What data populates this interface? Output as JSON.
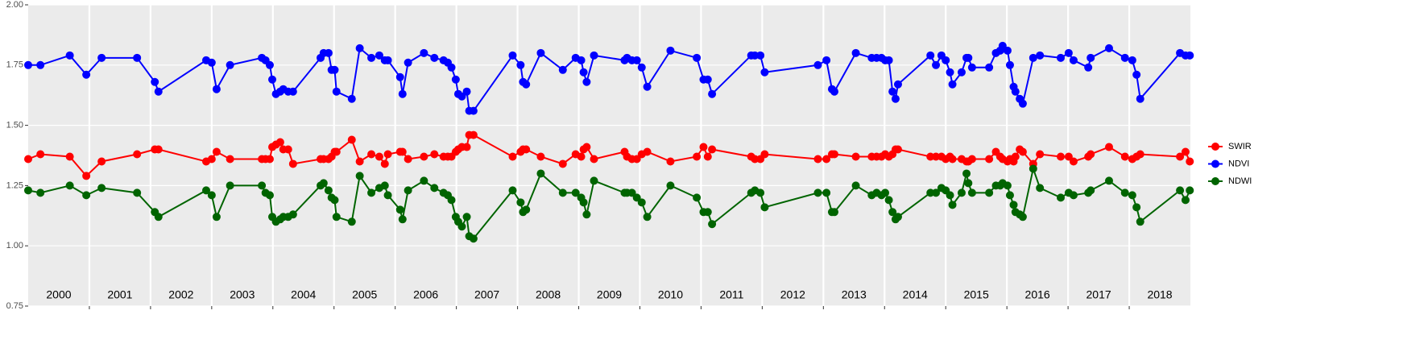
{
  "chart_data": {
    "type": "line",
    "x": [
      2000.0,
      2000.2,
      2000.68,
      2000.95,
      2001.2,
      2001.78,
      2002.07,
      2002.13,
      2002.91,
      2003.0,
      2003.08,
      2003.3,
      2003.82,
      2003.88,
      2003.95,
      2003.99,
      2004.05,
      2004.12,
      2004.17,
      2004.25,
      2004.33,
      2004.78,
      2004.83,
      2004.91,
      2004.96,
      2005.01,
      2005.04,
      2005.29,
      2005.42,
      2005.61,
      2005.74,
      2005.83,
      2005.88,
      2006.08,
      2006.12,
      2006.21,
      2006.47,
      2006.64,
      2006.79,
      2006.86,
      2006.92,
      2006.99,
      2007.03,
      2007.09,
      2007.17,
      2007.21,
      2007.28,
      2007.92,
      2008.05,
      2008.09,
      2008.14,
      2008.38,
      2008.74,
      2008.95,
      2009.04,
      2009.08,
      2009.13,
      2009.25,
      2009.75,
      2009.79,
      2009.87,
      2009.95,
      2010.03,
      2010.12,
      2010.5,
      2010.93,
      2011.04,
      2011.11,
      2011.18,
      2011.82,
      2011.88,
      2011.97,
      2012.04,
      2012.91,
      2013.05,
      2013.14,
      2013.18,
      2013.53,
      2013.79,
      2013.87,
      2013.95,
      2014.01,
      2014.07,
      2014.13,
      2014.18,
      2014.22,
      2014.75,
      2014.84,
      2014.93,
      2015.0,
      2015.07,
      2015.11,
      2015.26,
      2015.34,
      2015.37,
      2015.43,
      2015.71,
      2015.82,
      2015.89,
      2015.93,
      2016.01,
      2016.05,
      2016.11,
      2016.14,
      2016.21,
      2016.26,
      2016.43,
      2016.54,
      2016.88,
      2017.01,
      2017.09,
      2017.33,
      2017.37,
      2017.67,
      2017.93,
      2018.05,
      2018.12,
      2018.18,
      2018.83,
      2018.92,
      2018.99
    ],
    "series": [
      {
        "name": "SWIR",
        "color": "#ff0000",
        "values": [
          1.36,
          1.38,
          1.37,
          1.29,
          1.35,
          1.38,
          1.4,
          1.4,
          1.35,
          1.36,
          1.39,
          1.36,
          1.36,
          1.36,
          1.36,
          1.41,
          1.42,
          1.43,
          1.4,
          1.4,
          1.34,
          1.36,
          1.36,
          1.36,
          1.37,
          1.39,
          1.39,
          1.44,
          1.35,
          1.38,
          1.37,
          1.34,
          1.38,
          1.39,
          1.39,
          1.36,
          1.37,
          1.38,
          1.37,
          1.37,
          1.37,
          1.39,
          1.4,
          1.41,
          1.41,
          1.46,
          1.46,
          1.37,
          1.39,
          1.4,
          1.4,
          1.37,
          1.34,
          1.38,
          1.37,
          1.4,
          1.41,
          1.36,
          1.39,
          1.37,
          1.36,
          1.36,
          1.38,
          1.39,
          1.35,
          1.37,
          1.41,
          1.37,
          1.4,
          1.37,
          1.36,
          1.36,
          1.38,
          1.36,
          1.36,
          1.38,
          1.38,
          1.37,
          1.37,
          1.37,
          1.37,
          1.38,
          1.37,
          1.38,
          1.4,
          1.4,
          1.37,
          1.37,
          1.37,
          1.36,
          1.37,
          1.36,
          1.36,
          1.35,
          1.35,
          1.36,
          1.36,
          1.39,
          1.37,
          1.36,
          1.35,
          1.36,
          1.35,
          1.37,
          1.4,
          1.39,
          1.34,
          1.38,
          1.37,
          1.37,
          1.35,
          1.37,
          1.38,
          1.41,
          1.37,
          1.36,
          1.37,
          1.38,
          1.37,
          1.39,
          1.35
        ]
      },
      {
        "name": "NDVI",
        "color": "#0000ff",
        "values": [
          1.75,
          1.75,
          1.79,
          1.71,
          1.78,
          1.78,
          1.68,
          1.64,
          1.77,
          1.76,
          1.65,
          1.75,
          1.78,
          1.77,
          1.75,
          1.69,
          1.63,
          1.64,
          1.65,
          1.64,
          1.64,
          1.78,
          1.8,
          1.8,
          1.73,
          1.73,
          1.64,
          1.61,
          1.82,
          1.78,
          1.79,
          1.77,
          1.77,
          1.7,
          1.63,
          1.76,
          1.8,
          1.78,
          1.77,
          1.76,
          1.74,
          1.69,
          1.63,
          1.62,
          1.64,
          1.56,
          1.56,
          1.79,
          1.75,
          1.68,
          1.67,
          1.8,
          1.73,
          1.78,
          1.77,
          1.72,
          1.68,
          1.79,
          1.77,
          1.78,
          1.77,
          1.77,
          1.74,
          1.66,
          1.81,
          1.78,
          1.69,
          1.69,
          1.63,
          1.79,
          1.79,
          1.79,
          1.72,
          1.75,
          1.77,
          1.65,
          1.64,
          1.8,
          1.78,
          1.78,
          1.78,
          1.77,
          1.77,
          1.64,
          1.61,
          1.67,
          1.79,
          1.75,
          1.79,
          1.77,
          1.72,
          1.67,
          1.72,
          1.78,
          1.78,
          1.74,
          1.74,
          1.8,
          1.81,
          1.83,
          1.81,
          1.75,
          1.66,
          1.64,
          1.61,
          1.59,
          1.78,
          1.79,
          1.78,
          1.8,
          1.77,
          1.74,
          1.78,
          1.82,
          1.78,
          1.77,
          1.71,
          1.61,
          1.8,
          1.79,
          1.79
        ]
      },
      {
        "name": "NDWI",
        "color": "#006400",
        "values": [
          1.23,
          1.22,
          1.25,
          1.21,
          1.24,
          1.22,
          1.14,
          1.12,
          1.23,
          1.21,
          1.12,
          1.25,
          1.25,
          1.22,
          1.21,
          1.12,
          1.1,
          1.11,
          1.12,
          1.12,
          1.13,
          1.25,
          1.26,
          1.23,
          1.2,
          1.19,
          1.12,
          1.1,
          1.29,
          1.22,
          1.24,
          1.25,
          1.21,
          1.15,
          1.11,
          1.23,
          1.27,
          1.24,
          1.22,
          1.21,
          1.19,
          1.12,
          1.1,
          1.08,
          1.12,
          1.04,
          1.03,
          1.23,
          1.18,
          1.14,
          1.15,
          1.3,
          1.22,
          1.22,
          1.2,
          1.18,
          1.13,
          1.27,
          1.22,
          1.22,
          1.22,
          1.2,
          1.18,
          1.12,
          1.25,
          1.2,
          1.14,
          1.14,
          1.09,
          1.22,
          1.23,
          1.22,
          1.16,
          1.22,
          1.22,
          1.14,
          1.14,
          1.25,
          1.21,
          1.22,
          1.21,
          1.22,
          1.19,
          1.14,
          1.11,
          1.12,
          1.22,
          1.22,
          1.24,
          1.23,
          1.21,
          1.17,
          1.22,
          1.3,
          1.26,
          1.22,
          1.22,
          1.25,
          1.25,
          1.26,
          1.25,
          1.21,
          1.17,
          1.14,
          1.13,
          1.12,
          1.32,
          1.24,
          1.2,
          1.22,
          1.21,
          1.22,
          1.23,
          1.27,
          1.22,
          1.21,
          1.16,
          1.1,
          1.23,
          1.19,
          1.23
        ]
      }
    ],
    "xlim": [
      2000,
      2019
    ],
    "xticks": [
      {
        "value": 2000.5,
        "label": "2000"
      },
      {
        "value": 2001.5,
        "label": "2001"
      },
      {
        "value": 2002.5,
        "label": "2002"
      },
      {
        "value": 2003.5,
        "label": "2003"
      },
      {
        "value": 2004.5,
        "label": "2004"
      },
      {
        "value": 2005.5,
        "label": "2005"
      },
      {
        "value": 2006.5,
        "label": "2006"
      },
      {
        "value": 2007.5,
        "label": "2007"
      },
      {
        "value": 2008.5,
        "label": "2008"
      },
      {
        "value": 2009.5,
        "label": "2009"
      },
      {
        "value": 2010.5,
        "label": "2010"
      },
      {
        "value": 2011.5,
        "label": "2011"
      },
      {
        "value": 2012.5,
        "label": "2012"
      },
      {
        "value": 2013.5,
        "label": "2013"
      },
      {
        "value": 2014.5,
        "label": "2014"
      },
      {
        "value": 2015.5,
        "label": "2015"
      },
      {
        "value": 2016.5,
        "label": "2016"
      },
      {
        "value": 2017.5,
        "label": "2017"
      },
      {
        "value": 2018.5,
        "label": "2018"
      }
    ],
    "xgrid": [
      2001,
      2002,
      2003,
      2004,
      2005,
      2006,
      2007,
      2008,
      2009,
      2010,
      2011,
      2012,
      2013,
      2014,
      2015,
      2016,
      2017,
      2018
    ],
    "ylim": [
      0.75,
      2.0
    ],
    "yticks": [
      0.75,
      {
        "value": 1.0,
        "label": "1.00"
      },
      1.25,
      {
        "value": 1.5,
        "label": "1.50"
      },
      1.75,
      {
        "value": 2.0,
        "label": "2.00"
      }
    ],
    "grid": true,
    "legend": "right"
  }
}
